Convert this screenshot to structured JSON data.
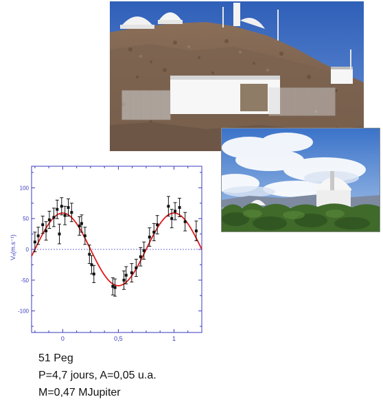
{
  "photos": [
    {
      "name": "observatory-hilltop-photo",
      "subject": "hilltop observatory with white domes and prefab buildings"
    },
    {
      "name": "observatory-domes-photo",
      "subject": "two white observatory domes above trees under cloudy sky"
    }
  ],
  "caption": {
    "line1": "51 Peg",
    "line2": "P=4,7 jours, A=0,05 u.a.",
    "line3": "M=0,47 MJupiter"
  },
  "chart_data": {
    "type": "scatter",
    "title": "",
    "xlabel": "",
    "ylabel": "Vₑ(m.s⁻¹)",
    "xlim": [
      -0.28,
      1.25
    ],
    "ylim": [
      -135,
      135
    ],
    "x_ticks": [
      0,
      0.5,
      1
    ],
    "x_tick_labels": [
      "0",
      "0,5",
      "1"
    ],
    "y_ticks": [
      100,
      50,
      0,
      -50,
      -100
    ],
    "y_tick_labels": [
      "100",
      "50",
      "0",
      "-50",
      "-100"
    ],
    "grid": false,
    "zero_line": {
      "y": 0,
      "style": "dotted",
      "color": "#6b6bd6"
    },
    "fit": {
      "name": "",
      "model": "sine",
      "amplitude": 59,
      "period": 1,
      "phase_at_max": 0,
      "color": "#e01818"
    },
    "series": [
      {
        "name": "",
        "color": "#111111",
        "points": [
          {
            "x": -0.25,
            "y": 12,
            "err": 16
          },
          {
            "x": -0.22,
            "y": 22,
            "err": 14
          },
          {
            "x": -0.18,
            "y": 40,
            "err": 14
          },
          {
            "x": -0.15,
            "y": 30,
            "err": 15
          },
          {
            "x": -0.12,
            "y": 48,
            "err": 14
          },
          {
            "x": -0.08,
            "y": 52,
            "err": 15
          },
          {
            "x": -0.05,
            "y": 65,
            "err": 15
          },
          {
            "x": -0.03,
            "y": 25,
            "err": 16
          },
          {
            "x": -0.01,
            "y": 70,
            "err": 14
          },
          {
            "x": 0.02,
            "y": 55,
            "err": 15
          },
          {
            "x": 0.05,
            "y": 68,
            "err": 14
          },
          {
            "x": 0.08,
            "y": 60,
            "err": 15
          },
          {
            "x": 0.15,
            "y": 38,
            "err": 15
          },
          {
            "x": 0.17,
            "y": 42,
            "err": 14
          },
          {
            "x": 0.2,
            "y": 22,
            "err": 14
          },
          {
            "x": 0.24,
            "y": -8,
            "err": 15
          },
          {
            "x": 0.26,
            "y": -25,
            "err": 15
          },
          {
            "x": 0.28,
            "y": -40,
            "err": 14
          },
          {
            "x": 0.45,
            "y": -60,
            "err": 14
          },
          {
            "x": 0.47,
            "y": -62,
            "err": 14
          },
          {
            "x": 0.55,
            "y": -50,
            "err": 15
          },
          {
            "x": 0.57,
            "y": -42,
            "err": 14
          },
          {
            "x": 0.62,
            "y": -38,
            "err": 15
          },
          {
            "x": 0.66,
            "y": -30,
            "err": 14
          },
          {
            "x": 0.7,
            "y": -12,
            "err": 15
          },
          {
            "x": 0.73,
            "y": -2,
            "err": 14
          },
          {
            "x": 0.78,
            "y": 20,
            "err": 15
          },
          {
            "x": 0.82,
            "y": 28,
            "err": 14
          },
          {
            "x": 0.85,
            "y": 40,
            "err": 15
          },
          {
            "x": 0.95,
            "y": 70,
            "err": 16
          },
          {
            "x": 0.98,
            "y": 50,
            "err": 15
          },
          {
            "x": 1.01,
            "y": 62,
            "err": 14
          },
          {
            "x": 1.05,
            "y": 68,
            "err": 15
          },
          {
            "x": 1.1,
            "y": 45,
            "err": 15
          },
          {
            "x": 1.2,
            "y": 30,
            "err": 16
          }
        ]
      }
    ]
  }
}
